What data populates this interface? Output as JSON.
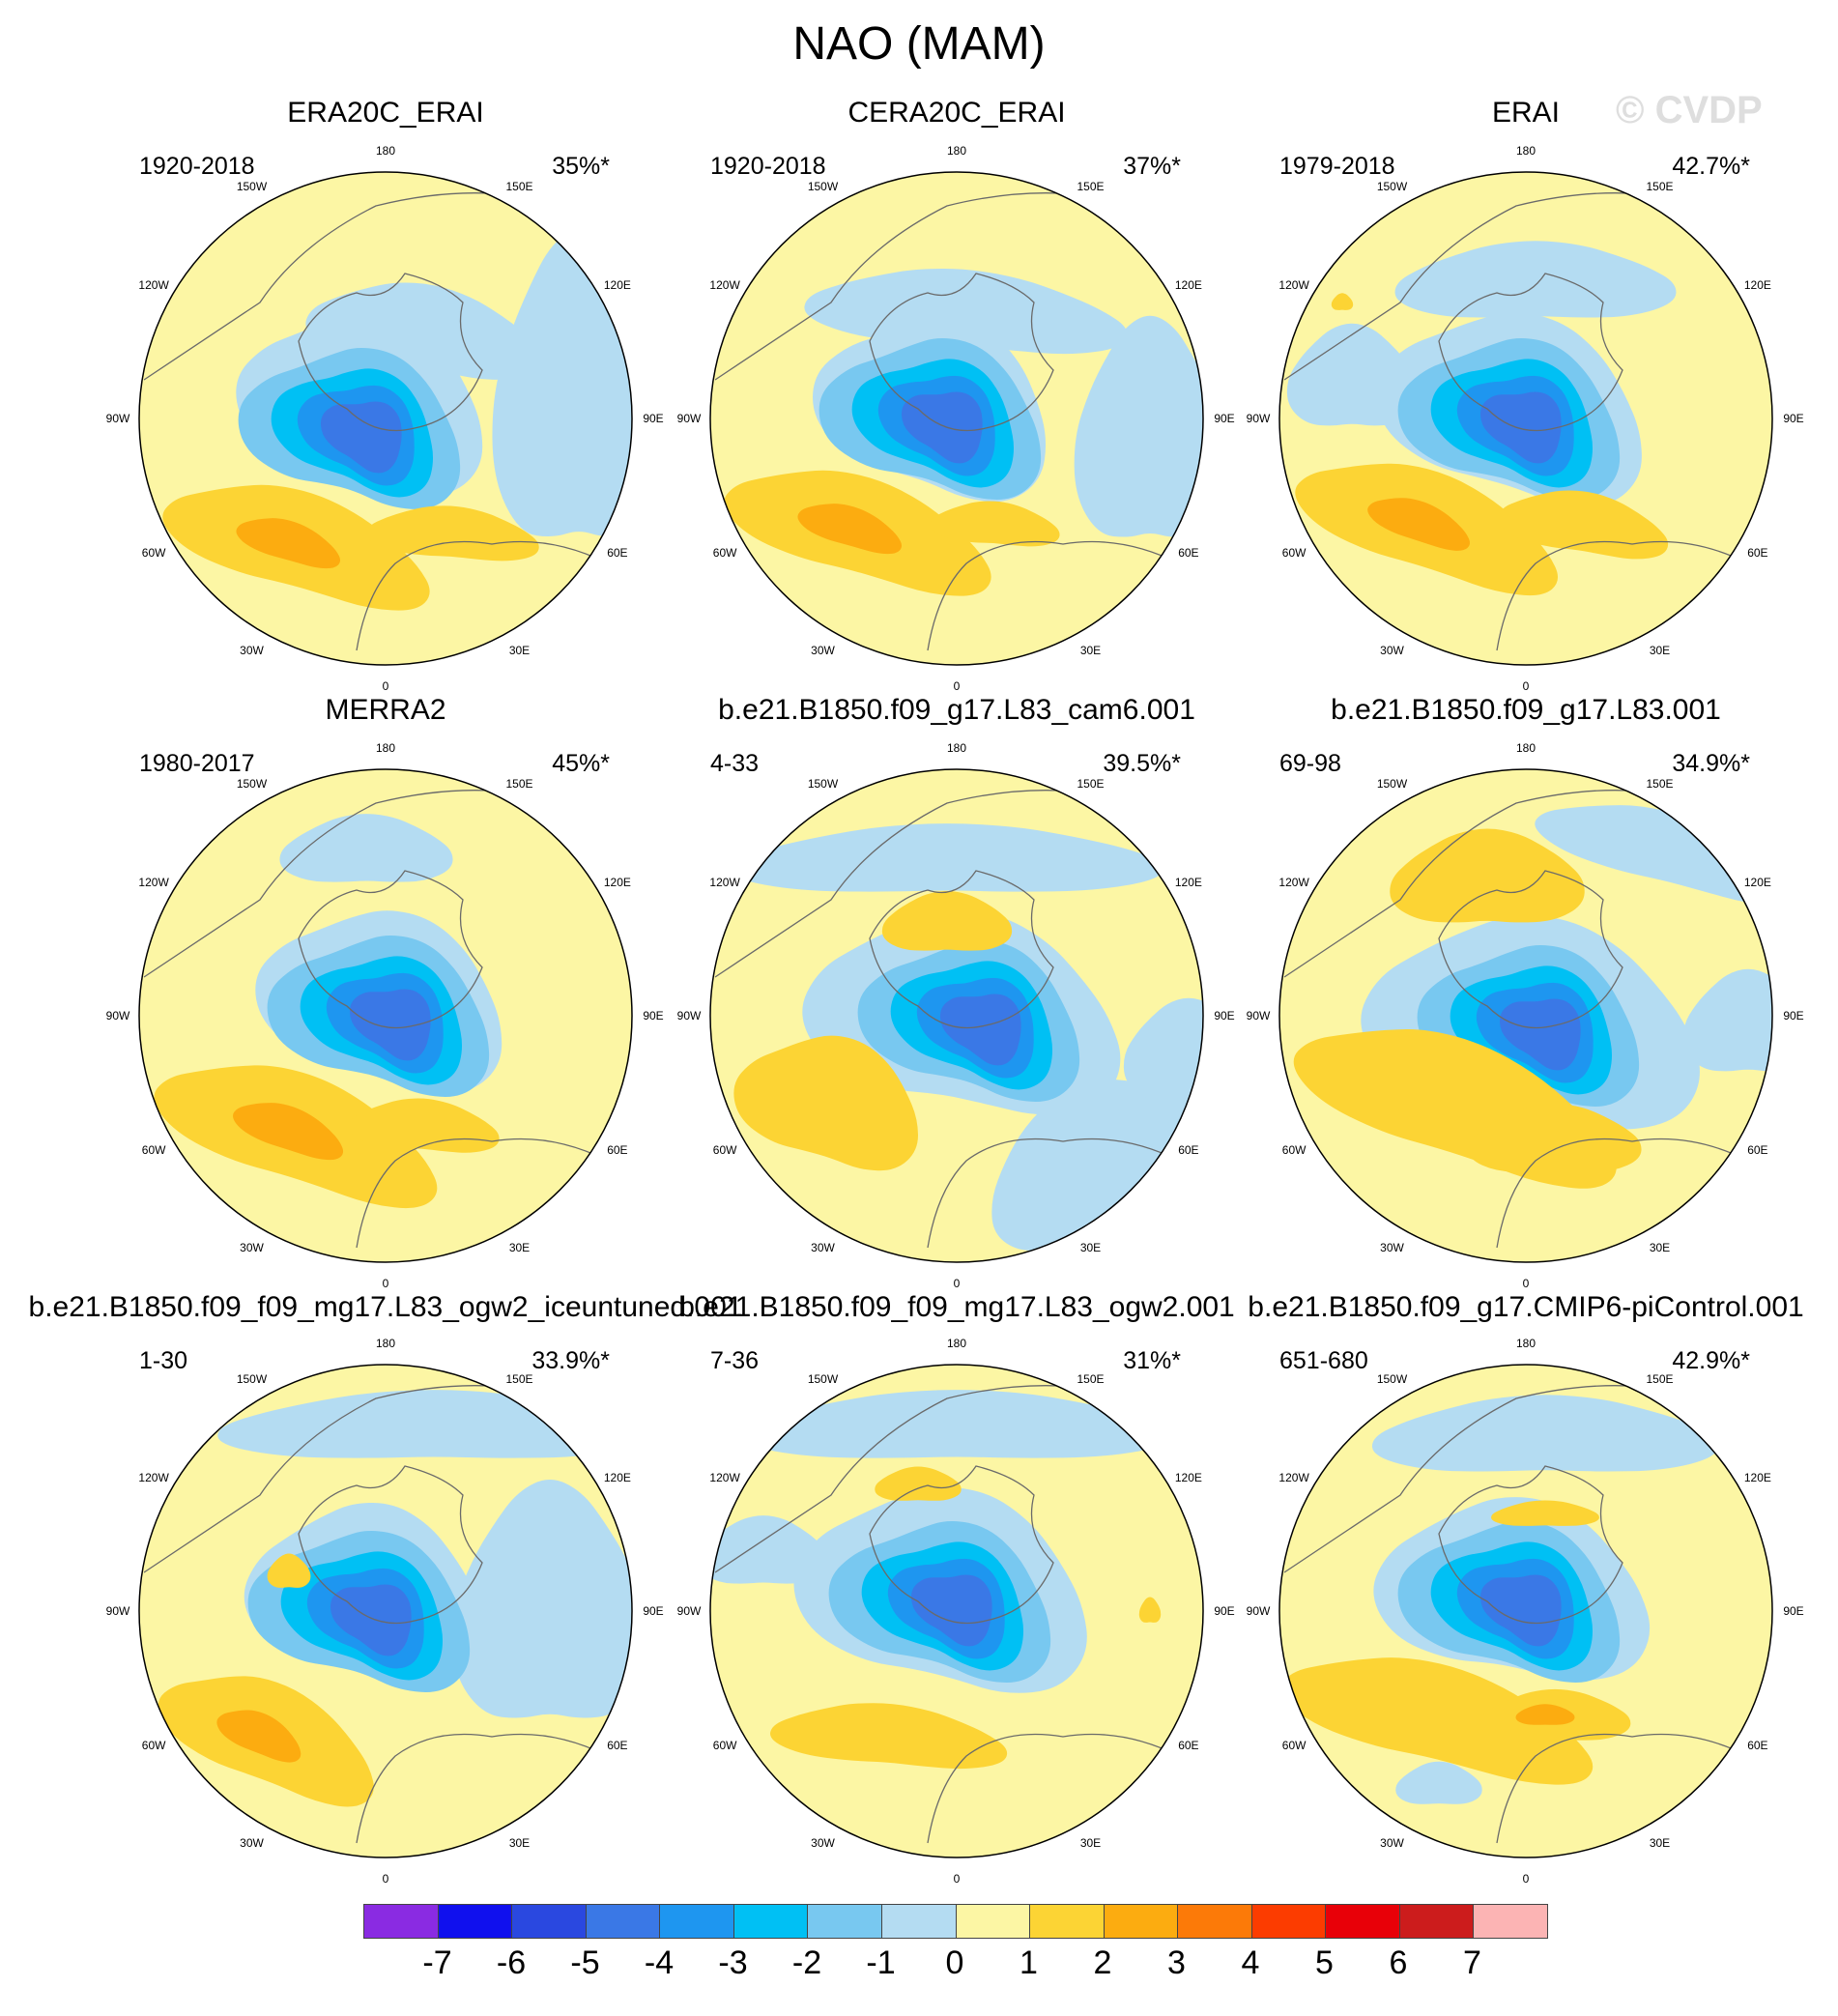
{
  "figure": {
    "title": "NAO (MAM)",
    "watermark": "© CVDP",
    "longitude_labels": [
      "180",
      "150E",
      "120E",
      "90E",
      "60E",
      "30E",
      "0",
      "30W",
      "60W",
      "90W",
      "120W",
      "150W"
    ]
  },
  "panels": [
    {
      "title": "ERA20C_ERAI",
      "period": "1920-2018",
      "variance": "35%*",
      "variant": 0
    },
    {
      "title": "CERA20C_ERAI",
      "period": "1920-2018",
      "variance": "37%*",
      "variant": 1
    },
    {
      "title": "ERAI",
      "period": "1979-2018",
      "variance": "42.7%*",
      "variant": 2
    },
    {
      "title": "MERRA2",
      "period": "1980-2017",
      "variance": "45%*",
      "variant": 3
    },
    {
      "title": "b.e21.B1850.f09_g17.L83_cam6.001",
      "period": "4-33",
      "variance": "39.5%*",
      "variant": 4
    },
    {
      "title": "b.e21.B1850.f09_g17.L83.001",
      "period": "69-98",
      "variance": "34.9%*",
      "variant": 5
    },
    {
      "title": "b.e21.B1850.f09_f09_mg17.L83_ogw2_iceuntuned.001",
      "period": "1-30",
      "variance": "33.9%*",
      "variant": 6
    },
    {
      "title": "b.e21.B1850.f09_f09_mg17.L83_ogw2.001",
      "period": "7-36",
      "variance": "31%*",
      "variant": 7
    },
    {
      "title": "b.e21.B1850.f09_g17.CMIP6-piControl.001",
      "period": "651-680",
      "variance": "42.9%*",
      "variant": 8
    }
  ],
  "colorbar": {
    "labels": [
      "-7",
      "-6",
      "-5",
      "-4",
      "-3",
      "-2",
      "-1",
      "0",
      "1",
      "2",
      "3",
      "4",
      "5",
      "6",
      "7"
    ],
    "colors": [
      "#8a2be2",
      "#1010ee",
      "#2a48e0",
      "#3a78e6",
      "#1e96f0",
      "#00c0f4",
      "#78c8f0",
      "#b4dcf2",
      "#fcf6a4",
      "#fcd434",
      "#fcac10",
      "#fc7a08",
      "#fc3c00",
      "#e80008",
      "#cc1c1c",
      "#fcb4b4"
    ]
  }
}
